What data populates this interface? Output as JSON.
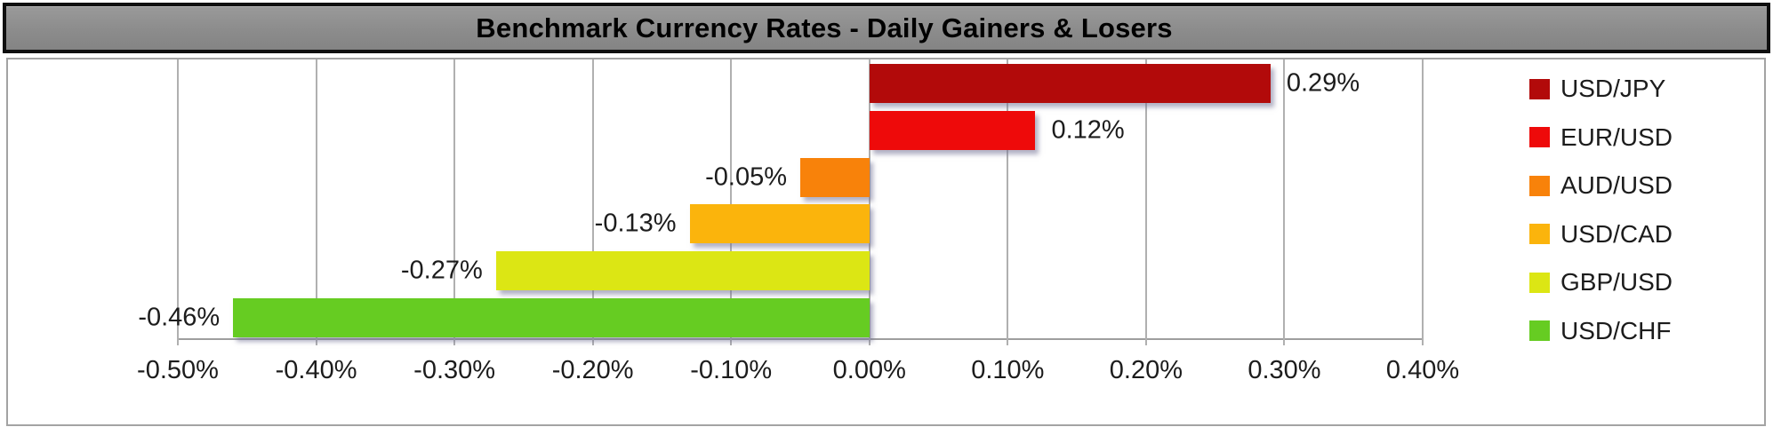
{
  "title": "Benchmark Currency Rates - Daily Gainers & Losers",
  "colors": {
    "title_bg": "#8c8c8c",
    "title_border": "#0f0f0f",
    "title_text": "#000000",
    "frame_border": "#a3a3a3",
    "grid": "#b0b0b0",
    "axis": "#9e9e9e",
    "label_text": "#1c1c1c",
    "plot_bg": "#ffffff"
  },
  "chart_data": {
    "type": "bar",
    "orientation": "horizontal",
    "title": "Benchmark Currency Rates - Daily Gainers & Losers",
    "series": [
      {
        "name": "USD/JPY",
        "value": 0.29,
        "value_label": "0.29%",
        "color": "#b20a0a"
      },
      {
        "name": "EUR/USD",
        "value": 0.12,
        "value_label": "0.12%",
        "color": "#ee0a0a"
      },
      {
        "name": "AUD/USD",
        "value": -0.05,
        "value_label": "-0.05%",
        "color": "#f8820a"
      },
      {
        "name": "USD/CAD",
        "value": -0.13,
        "value_label": "-0.13%",
        "color": "#fbb40c"
      },
      {
        "name": "GBP/USD",
        "value": -0.27,
        "value_label": "-0.27%",
        "color": "#dce614"
      },
      {
        "name": "USD/CHF",
        "value": -0.46,
        "value_label": "-0.46%",
        "color": "#66cc22"
      }
    ],
    "x_axis": {
      "min": -0.5,
      "max": 0.4,
      "tick_step": 0.1,
      "tick_labels": [
        "-0.50%",
        "-0.40%",
        "-0.30%",
        "-0.20%",
        "-0.10%",
        "0.00%",
        "0.10%",
        "0.20%",
        "0.30%",
        "0.40%"
      ]
    },
    "legend": {
      "position": "right",
      "entries": [
        "USD/JPY",
        "EUR/USD",
        "AUD/USD",
        "USD/CAD",
        "GBP/USD",
        "USD/CHF"
      ]
    },
    "grid": true,
    "xlabel": "",
    "ylabel": ""
  }
}
